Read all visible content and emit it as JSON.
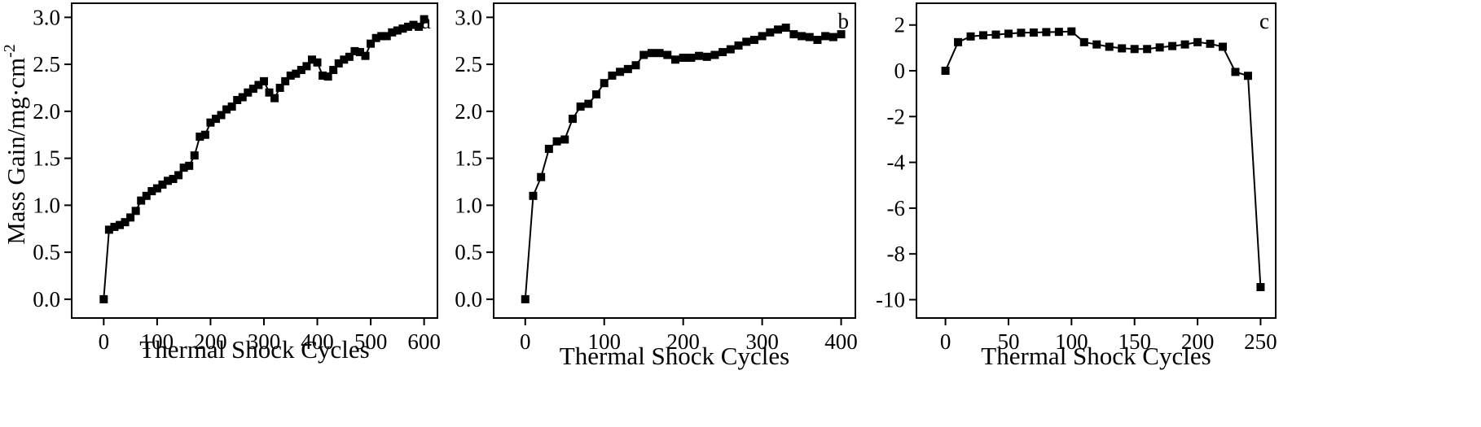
{
  "chart_data": [
    {
      "type": "scatter",
      "panel_label": "a",
      "xlabel": "Thermal Shock Cycles",
      "ylabel": "Mass Gain/mg·cm",
      "ylabel_superscript": "-2",
      "xlim": [
        -60,
        625
      ],
      "ylim": [
        -0.2,
        3.15
      ],
      "xticks": [
        0,
        100,
        200,
        300,
        400,
        500,
        600
      ],
      "yticks": [
        0.0,
        0.5,
        1.0,
        1.5,
        2.0,
        2.5,
        3.0
      ],
      "xtick_labels": [
        "0",
        "100",
        "200",
        "300",
        "400",
        "500",
        "600"
      ],
      "ytick_labels": [
        "0.0",
        "0.5",
        "1.0",
        "1.5",
        "2.0",
        "2.5",
        "3.0"
      ],
      "series": [
        {
          "marker": "square",
          "color": "#000000",
          "x": [
            0,
            10,
            20,
            30,
            40,
            50,
            60,
            70,
            80,
            90,
            100,
            110,
            120,
            130,
            140,
            150,
            160,
            170,
            180,
            190,
            200,
            210,
            220,
            230,
            240,
            250,
            260,
            270,
            280,
            290,
            300,
            310,
            320,
            330,
            340,
            350,
            360,
            370,
            380,
            390,
            400,
            410,
            420,
            430,
            440,
            450,
            460,
            470,
            480,
            490,
            500,
            510,
            520,
            530,
            540,
            550,
            560,
            570,
            580,
            590,
            600
          ],
          "y": [
            0.0,
            0.74,
            0.77,
            0.79,
            0.82,
            0.87,
            0.94,
            1.05,
            1.1,
            1.15,
            1.18,
            1.22,
            1.26,
            1.28,
            1.32,
            1.4,
            1.42,
            1.53,
            1.73,
            1.75,
            1.88,
            1.92,
            1.96,
            2.02,
            2.05,
            2.12,
            2.15,
            2.2,
            2.24,
            2.28,
            2.32,
            2.2,
            2.14,
            2.25,
            2.32,
            2.38,
            2.4,
            2.44,
            2.48,
            2.55,
            2.52,
            2.38,
            2.37,
            2.44,
            2.51,
            2.55,
            2.58,
            2.64,
            2.63,
            2.59,
            2.72,
            2.78,
            2.8,
            2.8,
            2.84,
            2.86,
            2.88,
            2.9,
            2.92,
            2.9,
            2.98
          ]
        }
      ]
    },
    {
      "type": "scatter",
      "panel_label": "b",
      "xlabel": "Thermal Shock Cycles",
      "ylabel": "",
      "xlim": [
        -40,
        418
      ],
      "ylim": [
        -0.2,
        3.15
      ],
      "xticks": [
        0,
        100,
        200,
        300,
        400
      ],
      "yticks": [
        0.0,
        0.5,
        1.0,
        1.5,
        2.0,
        2.5,
        3.0
      ],
      "xtick_labels": [
        "0",
        "100",
        "200",
        "300",
        "400"
      ],
      "ytick_labels": [
        "0.0",
        "0.5",
        "1.0",
        "1.5",
        "2.0",
        "2.5",
        "3.0"
      ],
      "series": [
        {
          "marker": "square",
          "color": "#000000",
          "x": [
            0,
            10,
            20,
            30,
            40,
            50,
            60,
            70,
            80,
            90,
            100,
            110,
            120,
            130,
            140,
            150,
            160,
            170,
            180,
            190,
            200,
            210,
            220,
            230,
            240,
            250,
            260,
            270,
            280,
            290,
            300,
            310,
            320,
            330,
            340,
            350,
            360,
            370,
            380,
            390,
            400
          ],
          "y": [
            0.0,
            1.1,
            1.3,
            1.6,
            1.68,
            1.7,
            1.92,
            2.05,
            2.08,
            2.18,
            2.3,
            2.38,
            2.42,
            2.45,
            2.49,
            2.6,
            2.62,
            2.62,
            2.6,
            2.55,
            2.57,
            2.57,
            2.59,
            2.58,
            2.6,
            2.63,
            2.66,
            2.7,
            2.74,
            2.76,
            2.8,
            2.84,
            2.87,
            2.89,
            2.82,
            2.8,
            2.79,
            2.76,
            2.8,
            2.79,
            2.82
          ]
        }
      ]
    },
    {
      "type": "scatter",
      "panel_label": "c",
      "xlabel": "Thermal Shock Cycles",
      "ylabel": "",
      "xlim": [
        -23,
        262
      ],
      "ylim": [
        -10.8,
        2.95
      ],
      "xticks": [
        0,
        50,
        100,
        150,
        200,
        250
      ],
      "yticks": [
        -10,
        -8,
        -6,
        -4,
        -2,
        0,
        2
      ],
      "xtick_labels": [
        "0",
        "50",
        "100",
        "150",
        "200",
        "250"
      ],
      "ytick_labels": [
        "-10",
        "-8",
        "-6",
        "-4",
        "-2",
        "0",
        "2"
      ],
      "series": [
        {
          "marker": "square",
          "color": "#000000",
          "x": [
            0,
            10,
            20,
            30,
            40,
            50,
            60,
            70,
            80,
            90,
            100,
            110,
            120,
            130,
            140,
            150,
            160,
            170,
            180,
            190,
            200,
            210,
            220,
            230,
            240,
            250
          ],
          "y": [
            0.0,
            1.25,
            1.5,
            1.55,
            1.58,
            1.62,
            1.66,
            1.67,
            1.69,
            1.7,
            1.72,
            1.25,
            1.15,
            1.05,
            0.98,
            0.95,
            0.95,
            1.02,
            1.08,
            1.15,
            1.25,
            1.18,
            1.05,
            -0.05,
            -0.22,
            -9.45
          ]
        }
      ]
    }
  ]
}
